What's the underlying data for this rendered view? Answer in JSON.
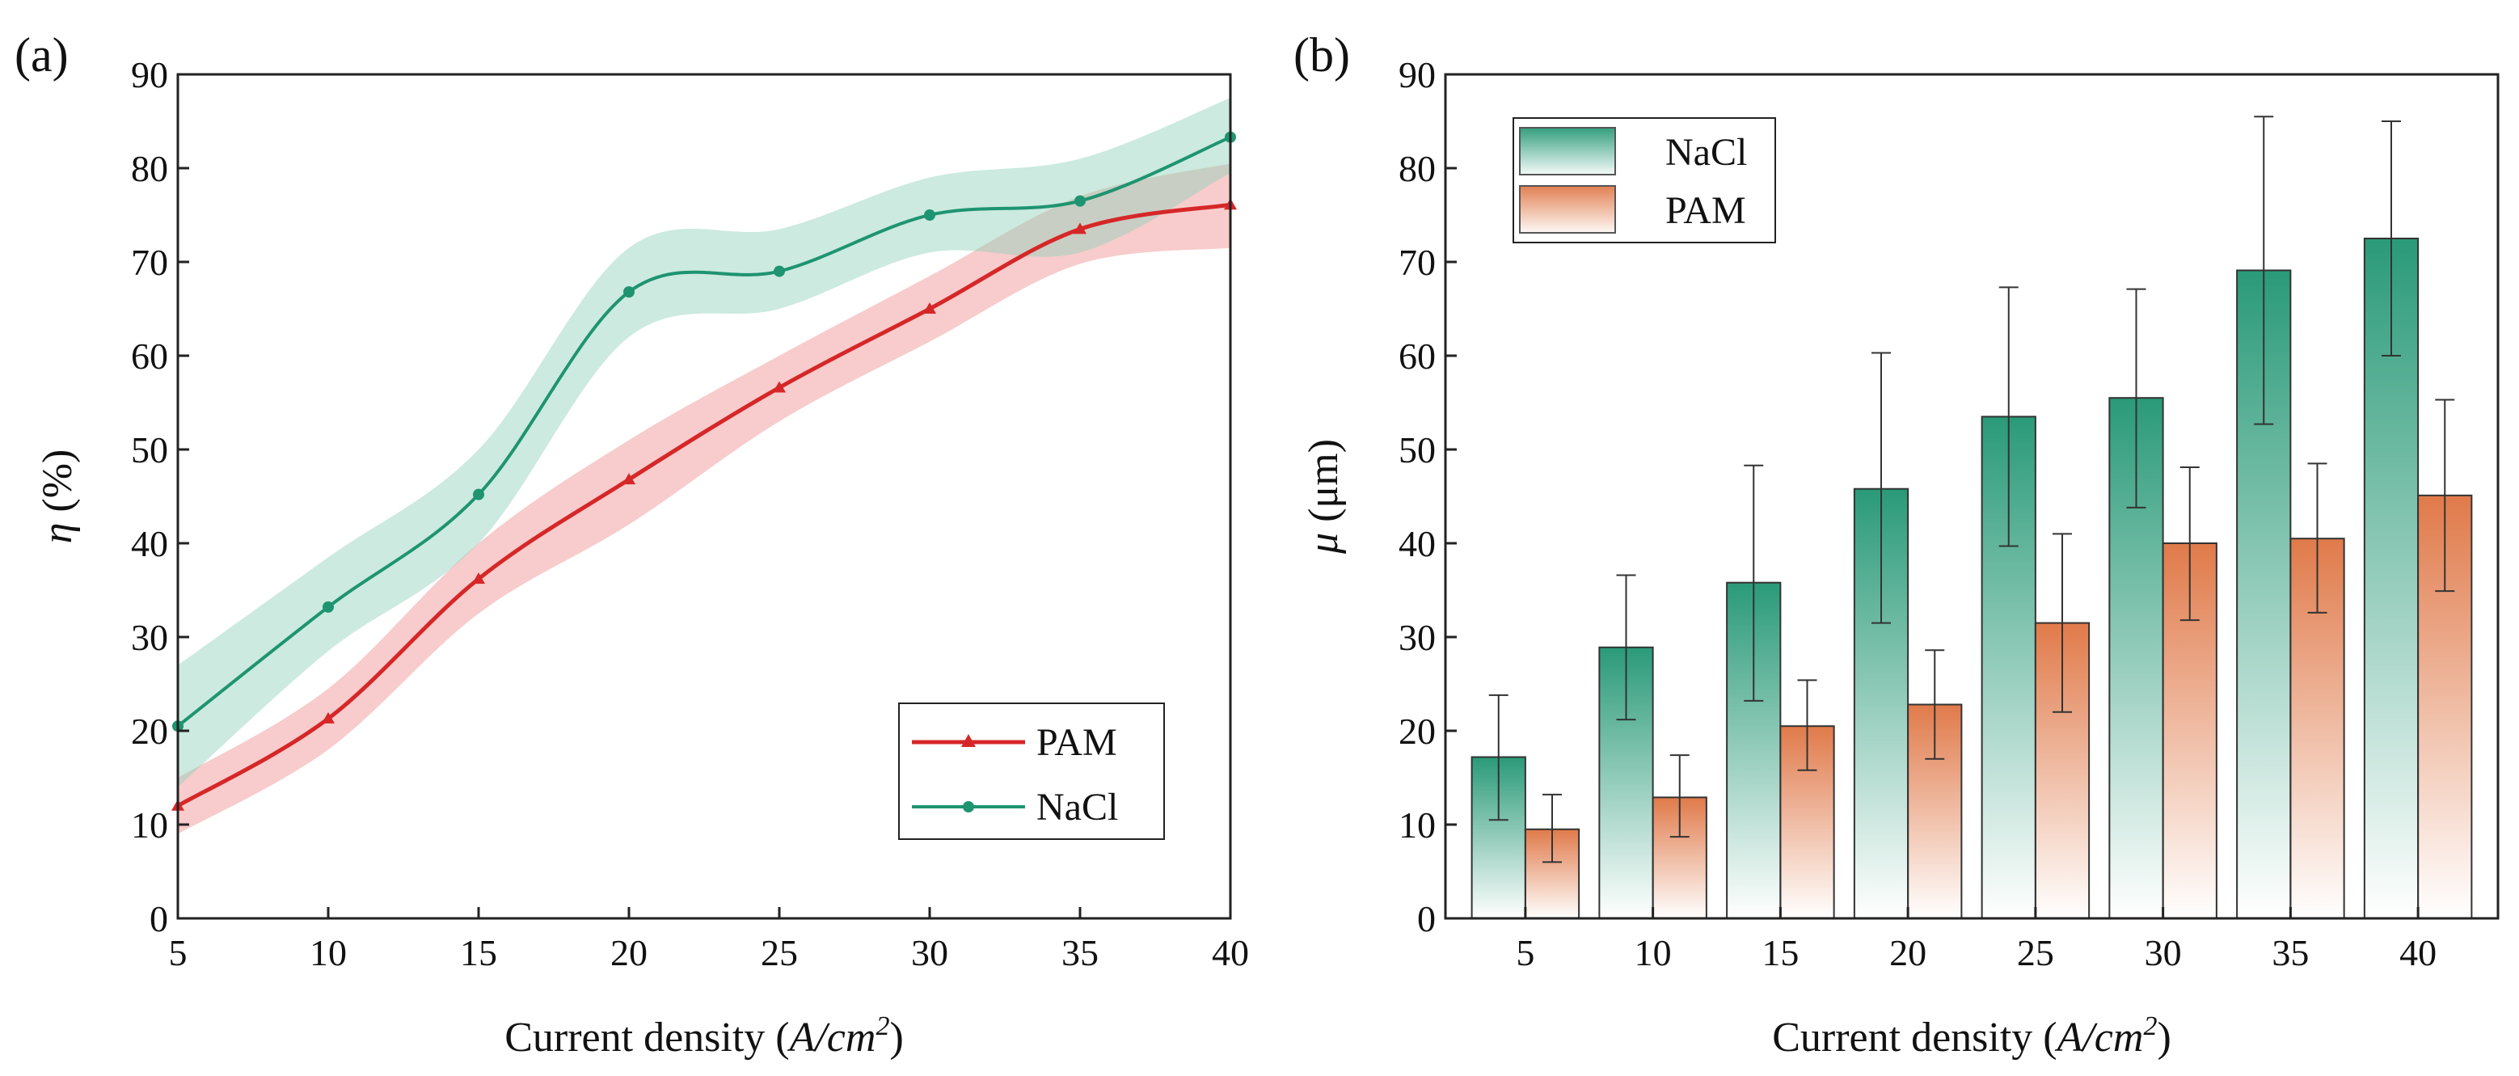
{
  "chart_data": [
    {
      "type": "line",
      "panel_label": "(a)",
      "xlabel_prefix": "Current density (",
      "xlabel_unit": "A/cm",
      "xlabel_sup": "2",
      "xlabel_suffix": ")",
      "ylabel_symbol": "η",
      "ylabel_unit": " (%)",
      "xlim": [
        5,
        40
      ],
      "ylim": [
        0,
        90
      ],
      "xticks": [
        "5",
        "10",
        "15",
        "20",
        "25",
        "30",
        "35",
        "40"
      ],
      "yticks": [
        "0",
        "10",
        "20",
        "30",
        "40",
        "50",
        "60",
        "70",
        "80",
        "90"
      ],
      "legend_position": "bottom-right",
      "series": [
        {
          "name": "PAM",
          "color": "#d62728",
          "band_color": "#f08f8f",
          "marker": "triangle",
          "x": [
            5,
            10,
            15,
            20,
            25,
            30,
            35,
            40
          ],
          "y": [
            12,
            21.3,
            36.2,
            46.8,
            56.6,
            65,
            73.5,
            76.1
          ],
          "band_lower": [
            9,
            18,
            32.5,
            42,
            53,
            61.5,
            69.8,
            71.5
          ],
          "band_upper": [
            15,
            24.5,
            40,
            51,
            60,
            68.5,
            77,
            80.5
          ]
        },
        {
          "name": "NaCl",
          "color": "#1e9470",
          "band_color": "#8fd1b8",
          "marker": "circle",
          "x": [
            5,
            10,
            15,
            20,
            25,
            30,
            35,
            40
          ],
          "y": [
            20.5,
            33.2,
            45.2,
            66.8,
            69,
            75,
            76.5,
            83.3
          ],
          "band_lower": [
            14,
            28.5,
            40,
            62,
            65,
            71,
            71,
            79.5
          ],
          "band_upper": [
            27,
            38.5,
            50,
            71.5,
            73.5,
            79,
            81,
            87.5
          ]
        }
      ]
    },
    {
      "type": "bar",
      "panel_label": "(b)",
      "xlabel_prefix": "Current density (",
      "xlabel_unit": "A/cm",
      "xlabel_sup": "2",
      "xlabel_suffix": ")",
      "ylabel_symbol": "μ",
      "ylabel_unit": " (μm)",
      "ylim": [
        0,
        90
      ],
      "categories": [
        "5",
        "10",
        "15",
        "20",
        "25",
        "30",
        "35",
        "40"
      ],
      "yticks": [
        "0",
        "10",
        "20",
        "30",
        "40",
        "50",
        "60",
        "70",
        "80",
        "90"
      ],
      "legend_position": "top-left",
      "series": [
        {
          "name": "NaCl",
          "color": "#2a9a78",
          "values": [
            17.2,
            28.9,
            35.8,
            45.8,
            53.5,
            55.5,
            69.1,
            72.5
          ],
          "err_low": [
            10.5,
            21.2,
            23.2,
            31.5,
            39.7,
            43.8,
            52.7,
            60
          ],
          "err_high": [
            23.8,
            36.6,
            48.3,
            60.3,
            67.3,
            67.1,
            85.5,
            85
          ]
        },
        {
          "name": "PAM",
          "color": "#e07a4a",
          "values": [
            9.5,
            12.9,
            20.5,
            22.8,
            31.5,
            40.0,
            40.5,
            45.1
          ],
          "err_low": [
            6,
            8.7,
            15.8,
            17,
            22,
            31.8,
            32.6,
            34.9
          ],
          "err_high": [
            13.2,
            17.4,
            25.4,
            28.6,
            41,
            48.1,
            48.5,
            55.3
          ]
        }
      ]
    }
  ]
}
